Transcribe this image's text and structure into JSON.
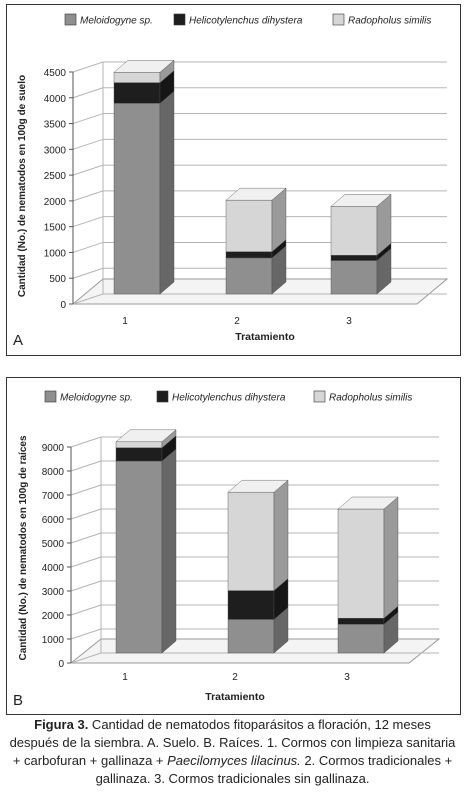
{
  "colors": {
    "meloidogyne": "#8f8f8f",
    "helicotylenchus": "#1e1e1e",
    "radopholus": "#d6d6d6"
  },
  "chart_data": [
    {
      "type": "bar",
      "stacked": true,
      "panel_label": "A",
      "categories": [
        "1",
        "2",
        "3"
      ],
      "series": [
        {
          "name": "Meloidogyne sp.",
          "values": [
            3700,
            700,
            650
          ]
        },
        {
          "name": "Helicotylenchus dihystera",
          "values": [
            400,
            120,
            100
          ]
        },
        {
          "name": "Radopholus similis",
          "values": [
            200,
            1000,
            950
          ]
        }
      ],
      "xlabel": "Tratamiento",
      "ylabel": "Cantidad (No.) de nematodos en 100g de suelo",
      "ylim": [
        0,
        4500
      ],
      "yticks": [
        0,
        500,
        1000,
        1500,
        2000,
        2500,
        3000,
        3500,
        4000,
        4500
      ],
      "grid": true,
      "legend_position": "top"
    },
    {
      "type": "bar",
      "stacked": true,
      "panel_label": "B",
      "categories": [
        "1",
        "2",
        "3"
      ],
      "series": [
        {
          "name": "Meloidogyne sp.",
          "values": [
            8000,
            1400,
            1200
          ]
        },
        {
          "name": "Helicotylenchus dihystera",
          "values": [
            550,
            1200,
            250
          ]
        },
        {
          "name": "Radopholus similis",
          "values": [
            250,
            4100,
            4550
          ]
        }
      ],
      "xlabel": "Tratamiento",
      "ylabel": "Cantidad (No.) de nematodos en 100g de raíces",
      "ylim": [
        0,
        9000
      ],
      "yticks": [
        0,
        1000,
        2000,
        3000,
        4000,
        5000,
        6000,
        7000,
        8000,
        9000
      ],
      "grid": true,
      "legend_position": "top"
    }
  ],
  "caption": {
    "label": "Figura 3.",
    "text_part1": " Cantidad de nematodos fitoparásitos a floración, 12 meses después de la siembra. A. Suelo. B. Raíces. 1. Cormos con limpieza sanitaria + carbofuran + gallinaza + ",
    "species": "Paecilomyces lilacinus.",
    "text_part2": " 2. Cormos tradicionales + gallinaza. 3. Cormos tradicionales sin gallinaza."
  }
}
